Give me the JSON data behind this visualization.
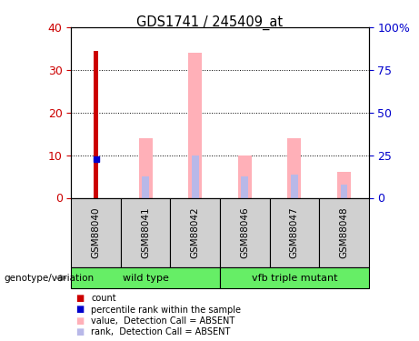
{
  "title": "GDS1741 / 245409_at",
  "samples": [
    "GSM88040",
    "GSM88041",
    "GSM88042",
    "GSM88046",
    "GSM88047",
    "GSM88048"
  ],
  "count_values": [
    34.5,
    0,
    0,
    0,
    0,
    0
  ],
  "percentile_values": [
    9.0,
    0,
    0,
    0,
    0,
    0
  ],
  "absent_value_bars": [
    0,
    14.0,
    34.0,
    10.0,
    14.0,
    6.0
  ],
  "absent_rank_bars": [
    0,
    5.0,
    10.0,
    5.0,
    5.5,
    3.0
  ],
  "ylim_left": [
    0,
    40
  ],
  "ylim_right": [
    0,
    100
  ],
  "yticks_left": [
    0,
    10,
    20,
    30,
    40
  ],
  "yticks_right": [
    0,
    25,
    50,
    75,
    100
  ],
  "yticklabels_right": [
    "0",
    "25",
    "50",
    "75",
    "100%"
  ],
  "count_color": "#cc0000",
  "percentile_color": "#0000cc",
  "absent_value_color": "#ffb0b8",
  "absent_rank_color": "#b8b8e8",
  "grid_color": "black",
  "label_color_left": "#cc0000",
  "label_color_right": "#0000cc",
  "group_color": "#66ee66",
  "sample_box_color": "#d0d0d0",
  "group_ranges": [
    [
      0,
      2,
      "wild type"
    ],
    [
      3,
      5,
      "vfb triple mutant"
    ]
  ]
}
